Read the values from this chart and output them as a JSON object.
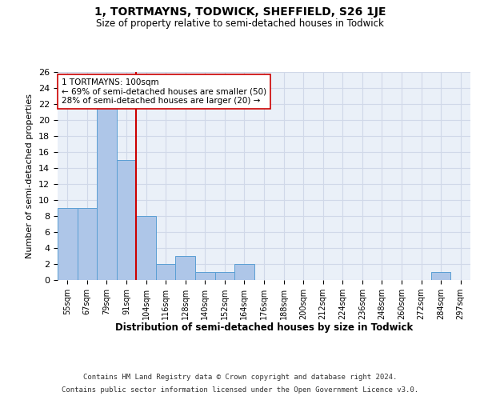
{
  "title": "1, TORTMAYNS, TODWICK, SHEFFIELD, S26 1JE",
  "subtitle": "Size of property relative to semi-detached houses in Todwick",
  "xlabel": "Distribution of semi-detached houses by size in Todwick",
  "ylabel": "Number of semi-detached properties",
  "footer1": "Contains HM Land Registry data © Crown copyright and database right 2024.",
  "footer2": "Contains public sector information licensed under the Open Government Licence v3.0.",
  "categories": [
    "55sqm",
    "67sqm",
    "79sqm",
    "91sqm",
    "104sqm",
    "116sqm",
    "128sqm",
    "140sqm",
    "152sqm",
    "164sqm",
    "176sqm",
    "188sqm",
    "200sqm",
    "212sqm",
    "224sqm",
    "236sqm",
    "248sqm",
    "260sqm",
    "272sqm",
    "284sqm",
    "297sqm"
  ],
  "values": [
    9,
    9,
    22,
    15,
    8,
    2,
    3,
    1,
    1,
    2,
    0,
    0,
    0,
    0,
    0,
    0,
    0,
    0,
    0,
    1,
    0
  ],
  "bar_color": "#aec6e8",
  "bar_edge_color": "#5a9fd4",
  "property_line_x": 3.5,
  "property_label": "1 TORTMAYNS: 100sqm",
  "annotation_line1": "← 69% of semi-detached houses are smaller (50)",
  "annotation_line2": "28% of semi-detached houses are larger (20) →",
  "line_color": "#cc0000",
  "annotation_box_color": "#ffffff",
  "annotation_box_edge": "#cc0000",
  "ylim": [
    0,
    26
  ],
  "yticks": [
    0,
    2,
    4,
    6,
    8,
    10,
    12,
    14,
    16,
    18,
    20,
    22,
    24,
    26
  ],
  "grid_color": "#d0d8e8",
  "background_color": "#eaf0f8"
}
